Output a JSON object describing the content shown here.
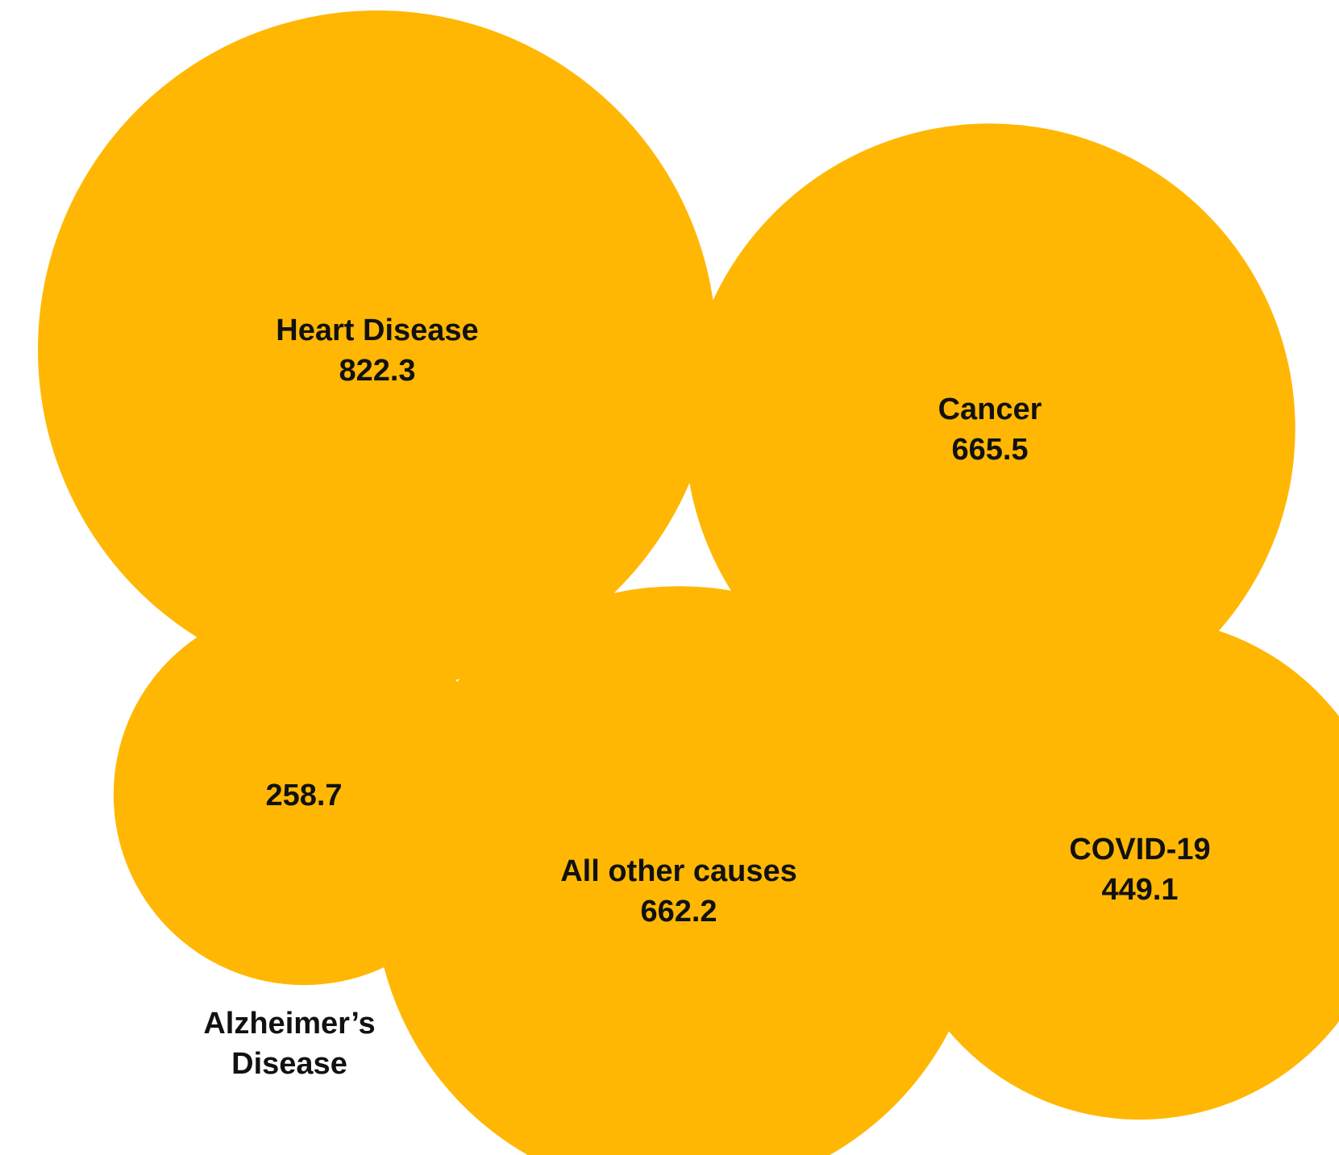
{
  "chart_data": {
    "type": "bubble",
    "bubble_color": "#FFB703",
    "label_color": "#111111",
    "items": [
      {
        "label": "Heart Disease",
        "value": 822.3,
        "label_position": "inside"
      },
      {
        "label": "Cancer",
        "value": 665.5,
        "label_position": "inside"
      },
      {
        "label": "Alzheimer’s Disease",
        "label_lines": [
          "Alzheimer’s",
          "Disease"
        ],
        "value": 258.7,
        "label_position": "below"
      },
      {
        "label": "All other causes",
        "value": 662.2,
        "label_position": "inside"
      },
      {
        "label": "COVID-19",
        "value": 449.1,
        "label_position": "inside"
      }
    ]
  }
}
